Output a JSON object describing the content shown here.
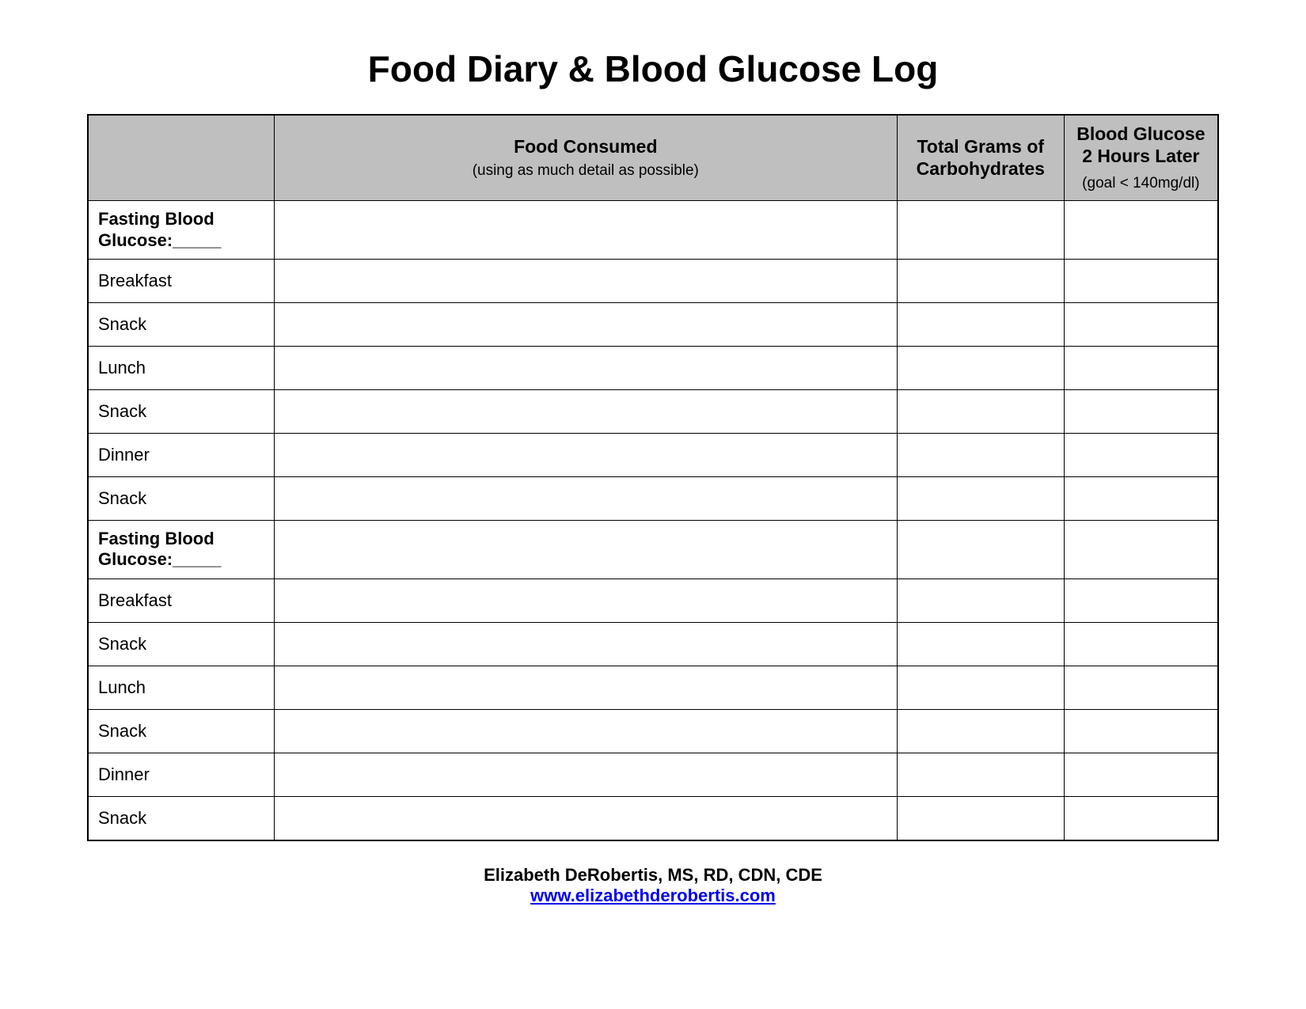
{
  "title": "Food Diary & Blood Glucose Log",
  "table": {
    "header": {
      "blank": "",
      "food_main": "Food Consumed",
      "food_sub": "(using as much detail as possible)",
      "carbs": "Total Grams of Carbohydrates",
      "glucose_main": "Blood Glucose 2 Hours Later",
      "glucose_sub": "(goal < 140mg/dl)"
    },
    "rows": [
      {
        "label": "Fasting Blood Glucose:_____",
        "bold": true,
        "food": "",
        "carbs": "",
        "glucose": ""
      },
      {
        "label": "Breakfast",
        "bold": false,
        "food": "",
        "carbs": "",
        "glucose": ""
      },
      {
        "label": "Snack",
        "bold": false,
        "food": "",
        "carbs": "",
        "glucose": ""
      },
      {
        "label": "Lunch",
        "bold": false,
        "food": "",
        "carbs": "",
        "glucose": ""
      },
      {
        "label": "Snack",
        "bold": false,
        "food": "",
        "carbs": "",
        "glucose": ""
      },
      {
        "label": "Dinner",
        "bold": false,
        "food": "",
        "carbs": "",
        "glucose": ""
      },
      {
        "label": "Snack",
        "bold": false,
        "food": "",
        "carbs": "",
        "glucose": ""
      },
      {
        "label": "Fasting Blood Glucose:_____",
        "bold": true,
        "food": "",
        "carbs": "",
        "glucose": ""
      },
      {
        "label": "Breakfast",
        "bold": false,
        "food": "",
        "carbs": "",
        "glucose": ""
      },
      {
        "label": "Snack",
        "bold": false,
        "food": "",
        "carbs": "",
        "glucose": ""
      },
      {
        "label": "Lunch",
        "bold": false,
        "food": "",
        "carbs": "",
        "glucose": ""
      },
      {
        "label": "Snack",
        "bold": false,
        "food": "",
        "carbs": "",
        "glucose": ""
      },
      {
        "label": "Dinner",
        "bold": false,
        "food": "",
        "carbs": "",
        "glucose": ""
      },
      {
        "label": "Snack",
        "bold": false,
        "food": "",
        "carbs": "",
        "glucose": ""
      }
    ]
  },
  "footer": {
    "author": "Elizabeth DeRobertis, MS, RD, CDN, CDE",
    "link": "www.elizabethderobertis.com"
  },
  "styling": {
    "header_bg": "#bfbfbf",
    "border_color": "#000000",
    "background": "#ffffff",
    "title_fontsize": 46,
    "header_main_fontsize": 23,
    "header_sub_fontsize": 19,
    "row_fontsize": 22,
    "footer_fontsize": 22,
    "link_color": "#0000ee"
  }
}
